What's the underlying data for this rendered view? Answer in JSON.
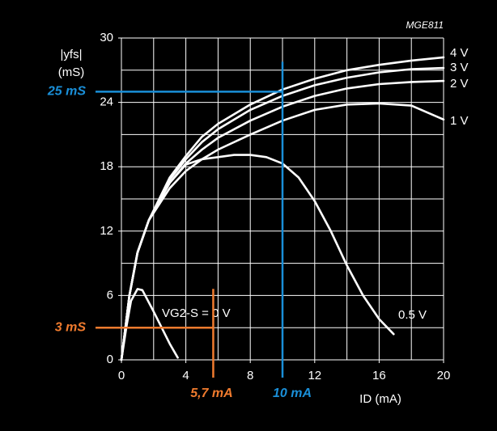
{
  "chart_data": {
    "type": "line",
    "code": "MGE811",
    "y_label": "|yfs|",
    "y_unit": "(mS)",
    "x_label": "ID (mA)",
    "xlim": [
      0,
      20
    ],
    "ylim": [
      0,
      30
    ],
    "xticks": [
      0,
      4,
      8,
      12,
      16,
      20
    ],
    "yticks": [
      0,
      6,
      12,
      18,
      24,
      30
    ],
    "x_grid_step": 2,
    "y_grid_step": 3,
    "grid": true,
    "series": [
      {
        "name": "4 V",
        "color": "#ffffff",
        "x": [
          0,
          0.5,
          1,
          1.7,
          3,
          4,
          5,
          6,
          8,
          10,
          12,
          14,
          16,
          18,
          20
        ],
        "values": [
          0,
          6,
          10,
          13,
          17,
          19,
          20.8,
          22,
          23.8,
          25.2,
          26.2,
          27,
          27.5,
          27.9,
          28.2
        ]
      },
      {
        "name": "3 V",
        "color": "#ffffff",
        "x": [
          0,
          0.5,
          1,
          1.7,
          3,
          4,
          5,
          6,
          8,
          10,
          12,
          14,
          16,
          18,
          20
        ],
        "values": [
          0,
          6,
          10,
          13,
          16.8,
          18.7,
          20.3,
          21.5,
          23.3,
          24.6,
          25.6,
          26.3,
          26.8,
          27.1,
          27.2
        ]
      },
      {
        "name": "2 V",
        "color": "#ffffff",
        "x": [
          0,
          0.5,
          1,
          1.7,
          3,
          4,
          5,
          6,
          8,
          10,
          12,
          14,
          16,
          18,
          20
        ],
        "values": [
          0,
          6,
          10,
          13,
          16.5,
          18.3,
          19.6,
          20.7,
          22.3,
          23.6,
          24.6,
          25.3,
          25.7,
          25.9,
          26
        ]
      },
      {
        "name": "1 V",
        "color": "#ffffff",
        "x": [
          0,
          0.5,
          1,
          1.7,
          3,
          4,
          5,
          6,
          8,
          10,
          12,
          14,
          16,
          18,
          20
        ],
        "values": [
          0,
          6,
          10,
          13,
          16,
          17.6,
          18.7,
          19.6,
          21,
          22.3,
          23.3,
          23.8,
          23.9,
          23.7,
          22.4
        ]
      },
      {
        "name": "0.5 V",
        "color": "#ffffff",
        "x": [
          0,
          0.5,
          1,
          1.7,
          3,
          4,
          5,
          6,
          7,
          8,
          9,
          10,
          11,
          12,
          13,
          14,
          15,
          16,
          16.9
        ],
        "values": [
          0,
          6,
          10,
          13,
          16.5,
          18.2,
          18.7,
          18.9,
          19.1,
          19.1,
          18.9,
          18.3,
          17,
          14.8,
          12,
          8.8,
          6,
          3.8,
          2.4
        ]
      },
      {
        "name": "VG2-S = 0 V",
        "color": "#ffffff",
        "x": [
          0,
          0.3,
          0.6,
          1,
          1.3,
          2,
          3,
          3.5
        ],
        "values": [
          0,
          3,
          5.5,
          6.6,
          6.5,
          4.5,
          1.5,
          0.2
        ]
      }
    ],
    "guides": [
      {
        "color": "#1a8fd8",
        "x": 10,
        "x_label": "10 mA",
        "y": 25,
        "y_label": "25 mS"
      },
      {
        "color": "#f07b2e",
        "x": 5.7,
        "x_label": "5,7 mA",
        "y": 3,
        "y_label": "3 mS"
      }
    ]
  }
}
